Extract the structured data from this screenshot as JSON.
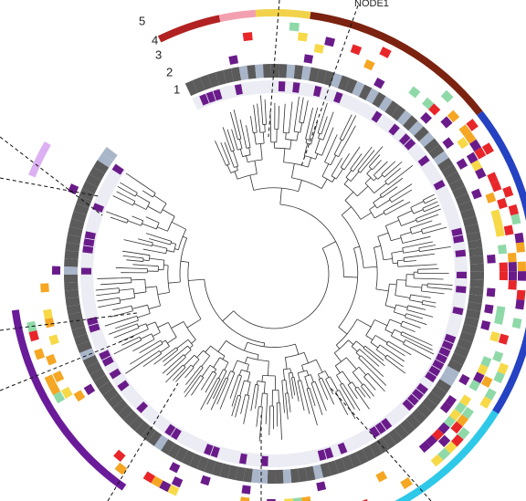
{
  "ring_labels": [
    "5",
    "4",
    "3",
    "2",
    "1"
  ],
  "node_label": "NODE1"
}
